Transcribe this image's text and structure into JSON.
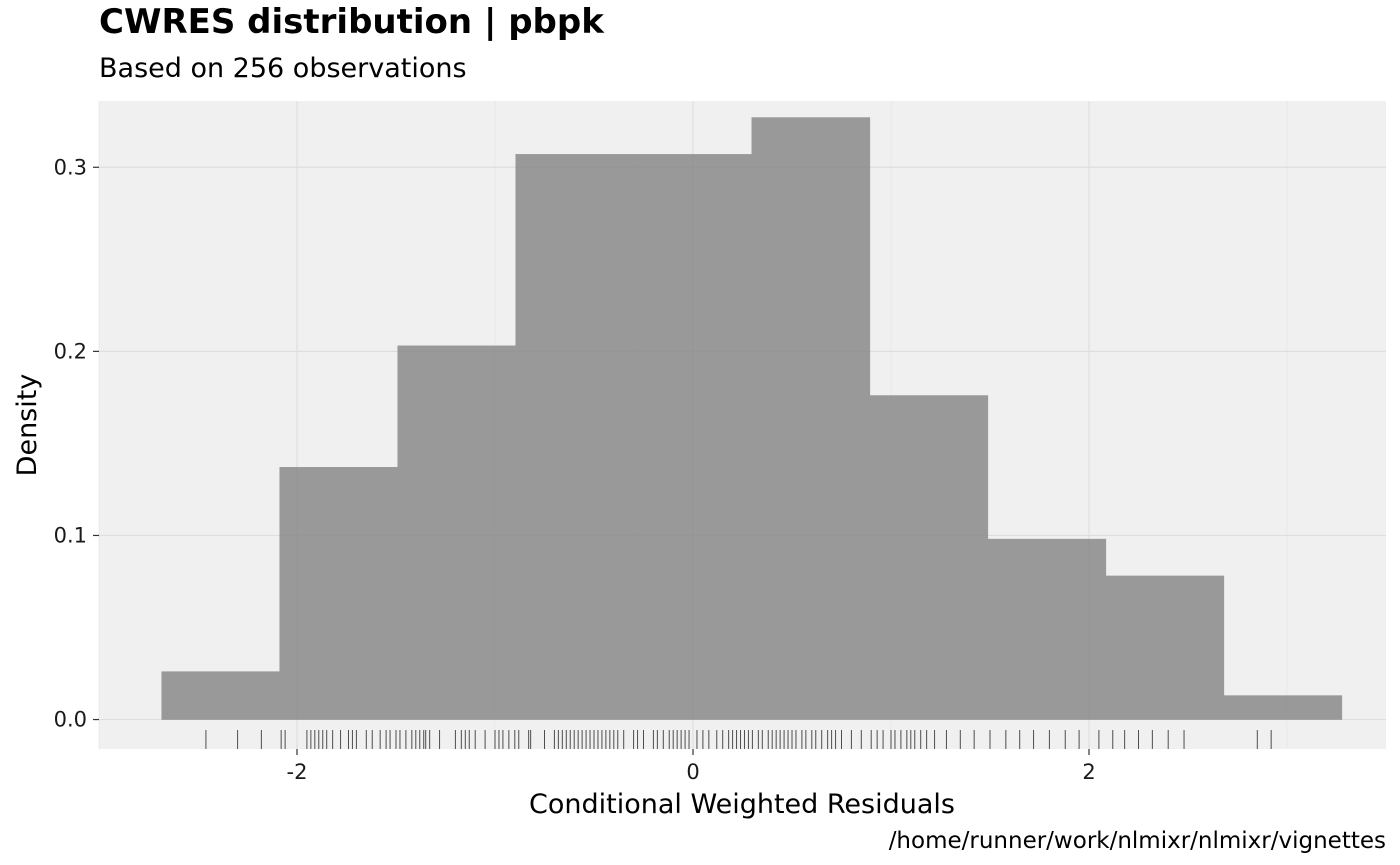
{
  "chart_data": {
    "type": "histogram",
    "title": "CWRES distribution | pbpk",
    "subtitle": "Based on 256 observations",
    "xlabel": "Conditional Weighted Residuals",
    "ylabel": "Density",
    "caption": "/home/runner/work/nlmixr/nlmixr/vignettes",
    "xlim": [
      -3.0,
      3.5
    ],
    "ylim": [
      -0.016,
      0.336
    ],
    "x_ticks": [
      -2,
      0,
      2
    ],
    "x_tick_labels": [
      "-2",
      "0",
      "2"
    ],
    "y_ticks": [
      0.0,
      0.1,
      0.2,
      0.3
    ],
    "y_tick_labels": [
      "0.0",
      "0.1",
      "0.2",
      "0.3"
    ],
    "grid": true,
    "bin_width": 0.596,
    "bins": [
      {
        "x0": -2.683,
        "x1": -2.087,
        "density": 0.026
      },
      {
        "x0": -2.087,
        "x1": -1.491,
        "density": 0.137
      },
      {
        "x0": -1.491,
        "x1": -0.895,
        "density": 0.203
      },
      {
        "x0": -0.895,
        "x1": -0.299,
        "density": 0.307
      },
      {
        "x0": -0.299,
        "x1": 0.297,
        "density": 0.307
      },
      {
        "x0": 0.297,
        "x1": 0.893,
        "density": 0.327
      },
      {
        "x0": 0.893,
        "x1": 1.489,
        "density": 0.176
      },
      {
        "x0": 1.489,
        "x1": 2.085,
        "density": 0.098
      },
      {
        "x0": 2.085,
        "x1": 2.681,
        "density": 0.078
      },
      {
        "x0": 2.681,
        "x1": 3.277,
        "density": 0.013
      }
    ],
    "rug": [
      -2.46,
      -2.3,
      -2.18,
      -2.08,
      -2.06,
      -1.95,
      -1.93,
      -1.91,
      -1.89,
      -1.87,
      -1.85,
      -1.82,
      -1.78,
      -1.74,
      -1.72,
      -1.7,
      -1.65,
      -1.62,
      -1.58,
      -1.55,
      -1.53,
      -1.5,
      -1.48,
      -1.45,
      -1.42,
      -1.4,
      -1.38,
      -1.36,
      -1.35,
      -1.33,
      -1.28,
      -1.2,
      -1.17,
      -1.15,
      -1.13,
      -1.1,
      -1.05,
      -1.0,
      -0.98,
      -0.96,
      -0.93,
      -0.9,
      -0.88,
      -0.83,
      -0.82,
      -0.75,
      -0.7,
      -0.68,
      -0.66,
      -0.64,
      -0.62,
      -0.6,
      -0.58,
      -0.56,
      -0.54,
      -0.52,
      -0.5,
      -0.48,
      -0.46,
      -0.44,
      -0.42,
      -0.4,
      -0.38,
      -0.35,
      -0.3,
      -0.28,
      -0.25,
      -0.2,
      -0.18,
      -0.15,
      -0.12,
      -0.1,
      -0.08,
      -0.06,
      -0.04,
      -0.02,
      0.02,
      0.05,
      0.08,
      0.12,
      0.15,
      0.18,
      0.2,
      0.22,
      0.24,
      0.26,
      0.28,
      0.3,
      0.33,
      0.35,
      0.38,
      0.4,
      0.42,
      0.44,
      0.46,
      0.48,
      0.5,
      0.52,
      0.55,
      0.57,
      0.6,
      0.62,
      0.65,
      0.68,
      0.7,
      0.72,
      0.75,
      0.8,
      0.85,
      0.9,
      0.93,
      0.96,
      1.0,
      1.02,
      1.05,
      1.08,
      1.1,
      1.12,
      1.15,
      1.18,
      1.22,
      1.28,
      1.35,
      1.42,
      1.5,
      1.58,
      1.65,
      1.72,
      1.8,
      1.88,
      1.95,
      2.05,
      2.12,
      2.18,
      2.25,
      2.32,
      2.4,
      2.48,
      2.85,
      2.92
    ]
  }
}
